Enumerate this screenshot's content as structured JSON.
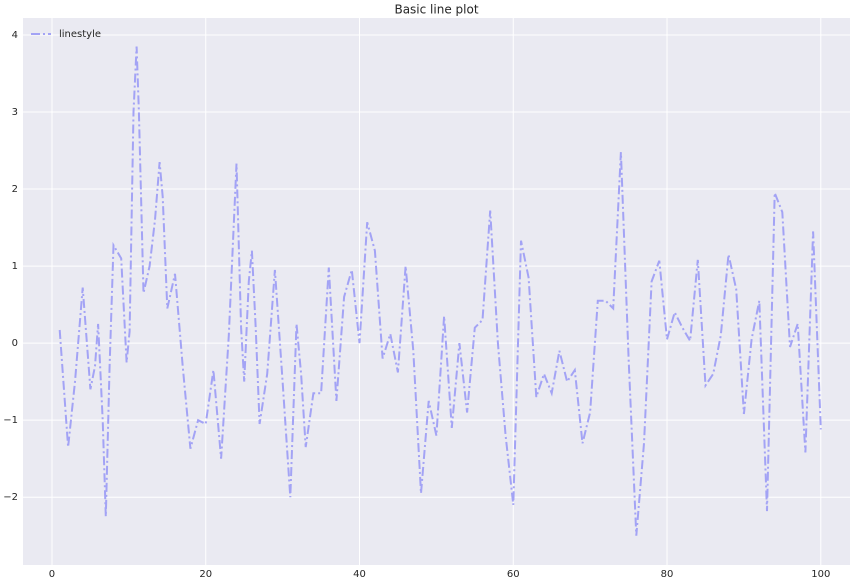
{
  "chart_data": {
    "type": "line",
    "title": "Basic line plot",
    "x": [
      1,
      2.1,
      3,
      4,
      5,
      5.6,
      6,
      6.6,
      7,
      7.5,
      8,
      9,
      9.7,
      10.1,
      10.6,
      11,
      11.3,
      11.9,
      12.7,
      13.4,
      14,
      14.4,
      15,
      16,
      17,
      18,
      19,
      20,
      21,
      22,
      23,
      24,
      24.6,
      25,
      25.6,
      26,
      26.5,
      27,
      28,
      29,
      30,
      31,
      31.8,
      32.4,
      33,
      34,
      35,
      36,
      37,
      38,
      39,
      40,
      41,
      42,
      43,
      44,
      45,
      46,
      47,
      48,
      49,
      50,
      51,
      52,
      53,
      54,
      55,
      56,
      57,
      58,
      59,
      60,
      61,
      62,
      63,
      64,
      65,
      66,
      67,
      68,
      69,
      70,
      71,
      72,
      73,
      74,
      75,
      76,
      77,
      78,
      79,
      80,
      81,
      82,
      83,
      84,
      85,
      86,
      87,
      88,
      89,
      90,
      91,
      92,
      93,
      94,
      95,
      96,
      97,
      98,
      99,
      100
    ],
    "series": [
      {
        "name": "linestyle",
        "color": "#a3a3f5",
        "values": [
          0.17,
          -1.35,
          -0.5,
          0.72,
          -0.6,
          -0.3,
          0.25,
          -1.0,
          -2.25,
          -0.3,
          1.27,
          1.1,
          -0.25,
          0.15,
          3.0,
          3.85,
          3.0,
          0.65,
          1.0,
          1.6,
          2.35,
          1.9,
          0.45,
          0.9,
          -0.3,
          -1.37,
          -1.0,
          -1.05,
          -0.35,
          -1.5,
          0.1,
          2.33,
          0.2,
          -0.5,
          0.8,
          1.2,
          0.2,
          -1.05,
          -0.4,
          0.95,
          -0.5,
          -2.0,
          0.25,
          -0.4,
          -1.35,
          -0.65,
          -0.65,
          0.98,
          -0.75,
          0.6,
          0.95,
          0.0,
          1.57,
          1.2,
          -0.2,
          0.12,
          -0.38,
          1.0,
          -0.1,
          -1.95,
          -0.75,
          -1.2,
          0.35,
          -1.1,
          0.0,
          -0.9,
          0.2,
          0.3,
          1.72,
          0.0,
          -1.2,
          -2.1,
          1.33,
          0.85,
          -0.7,
          -0.4,
          -0.65,
          -0.1,
          -0.5,
          -0.35,
          -1.3,
          -0.9,
          0.55,
          0.55,
          0.45,
          2.48,
          -0.2,
          -2.5,
          -1.3,
          0.8,
          1.07,
          0.05,
          0.4,
          0.2,
          0.03,
          1.08,
          -0.55,
          -0.4,
          0.1,
          1.15,
          0.7,
          -0.92,
          0.05,
          0.55,
          -2.18,
          1.95,
          1.7,
          -0.05,
          0.25,
          -1.42,
          1.45,
          -1.12
        ]
      }
    ],
    "xlim": [
      -3.77,
      103.8
    ],
    "ylim": [
      -2.88,
      4.22
    ],
    "xticks": [
      0,
      20,
      40,
      60,
      80,
      100
    ],
    "yticks": [
      {
        "value": -2,
        "label": "−2"
      },
      {
        "value": -1,
        "label": "−1"
      },
      0,
      1,
      2,
      3,
      4
    ],
    "grid": true,
    "legend": "upper left",
    "linestyle": "dashdot"
  }
}
